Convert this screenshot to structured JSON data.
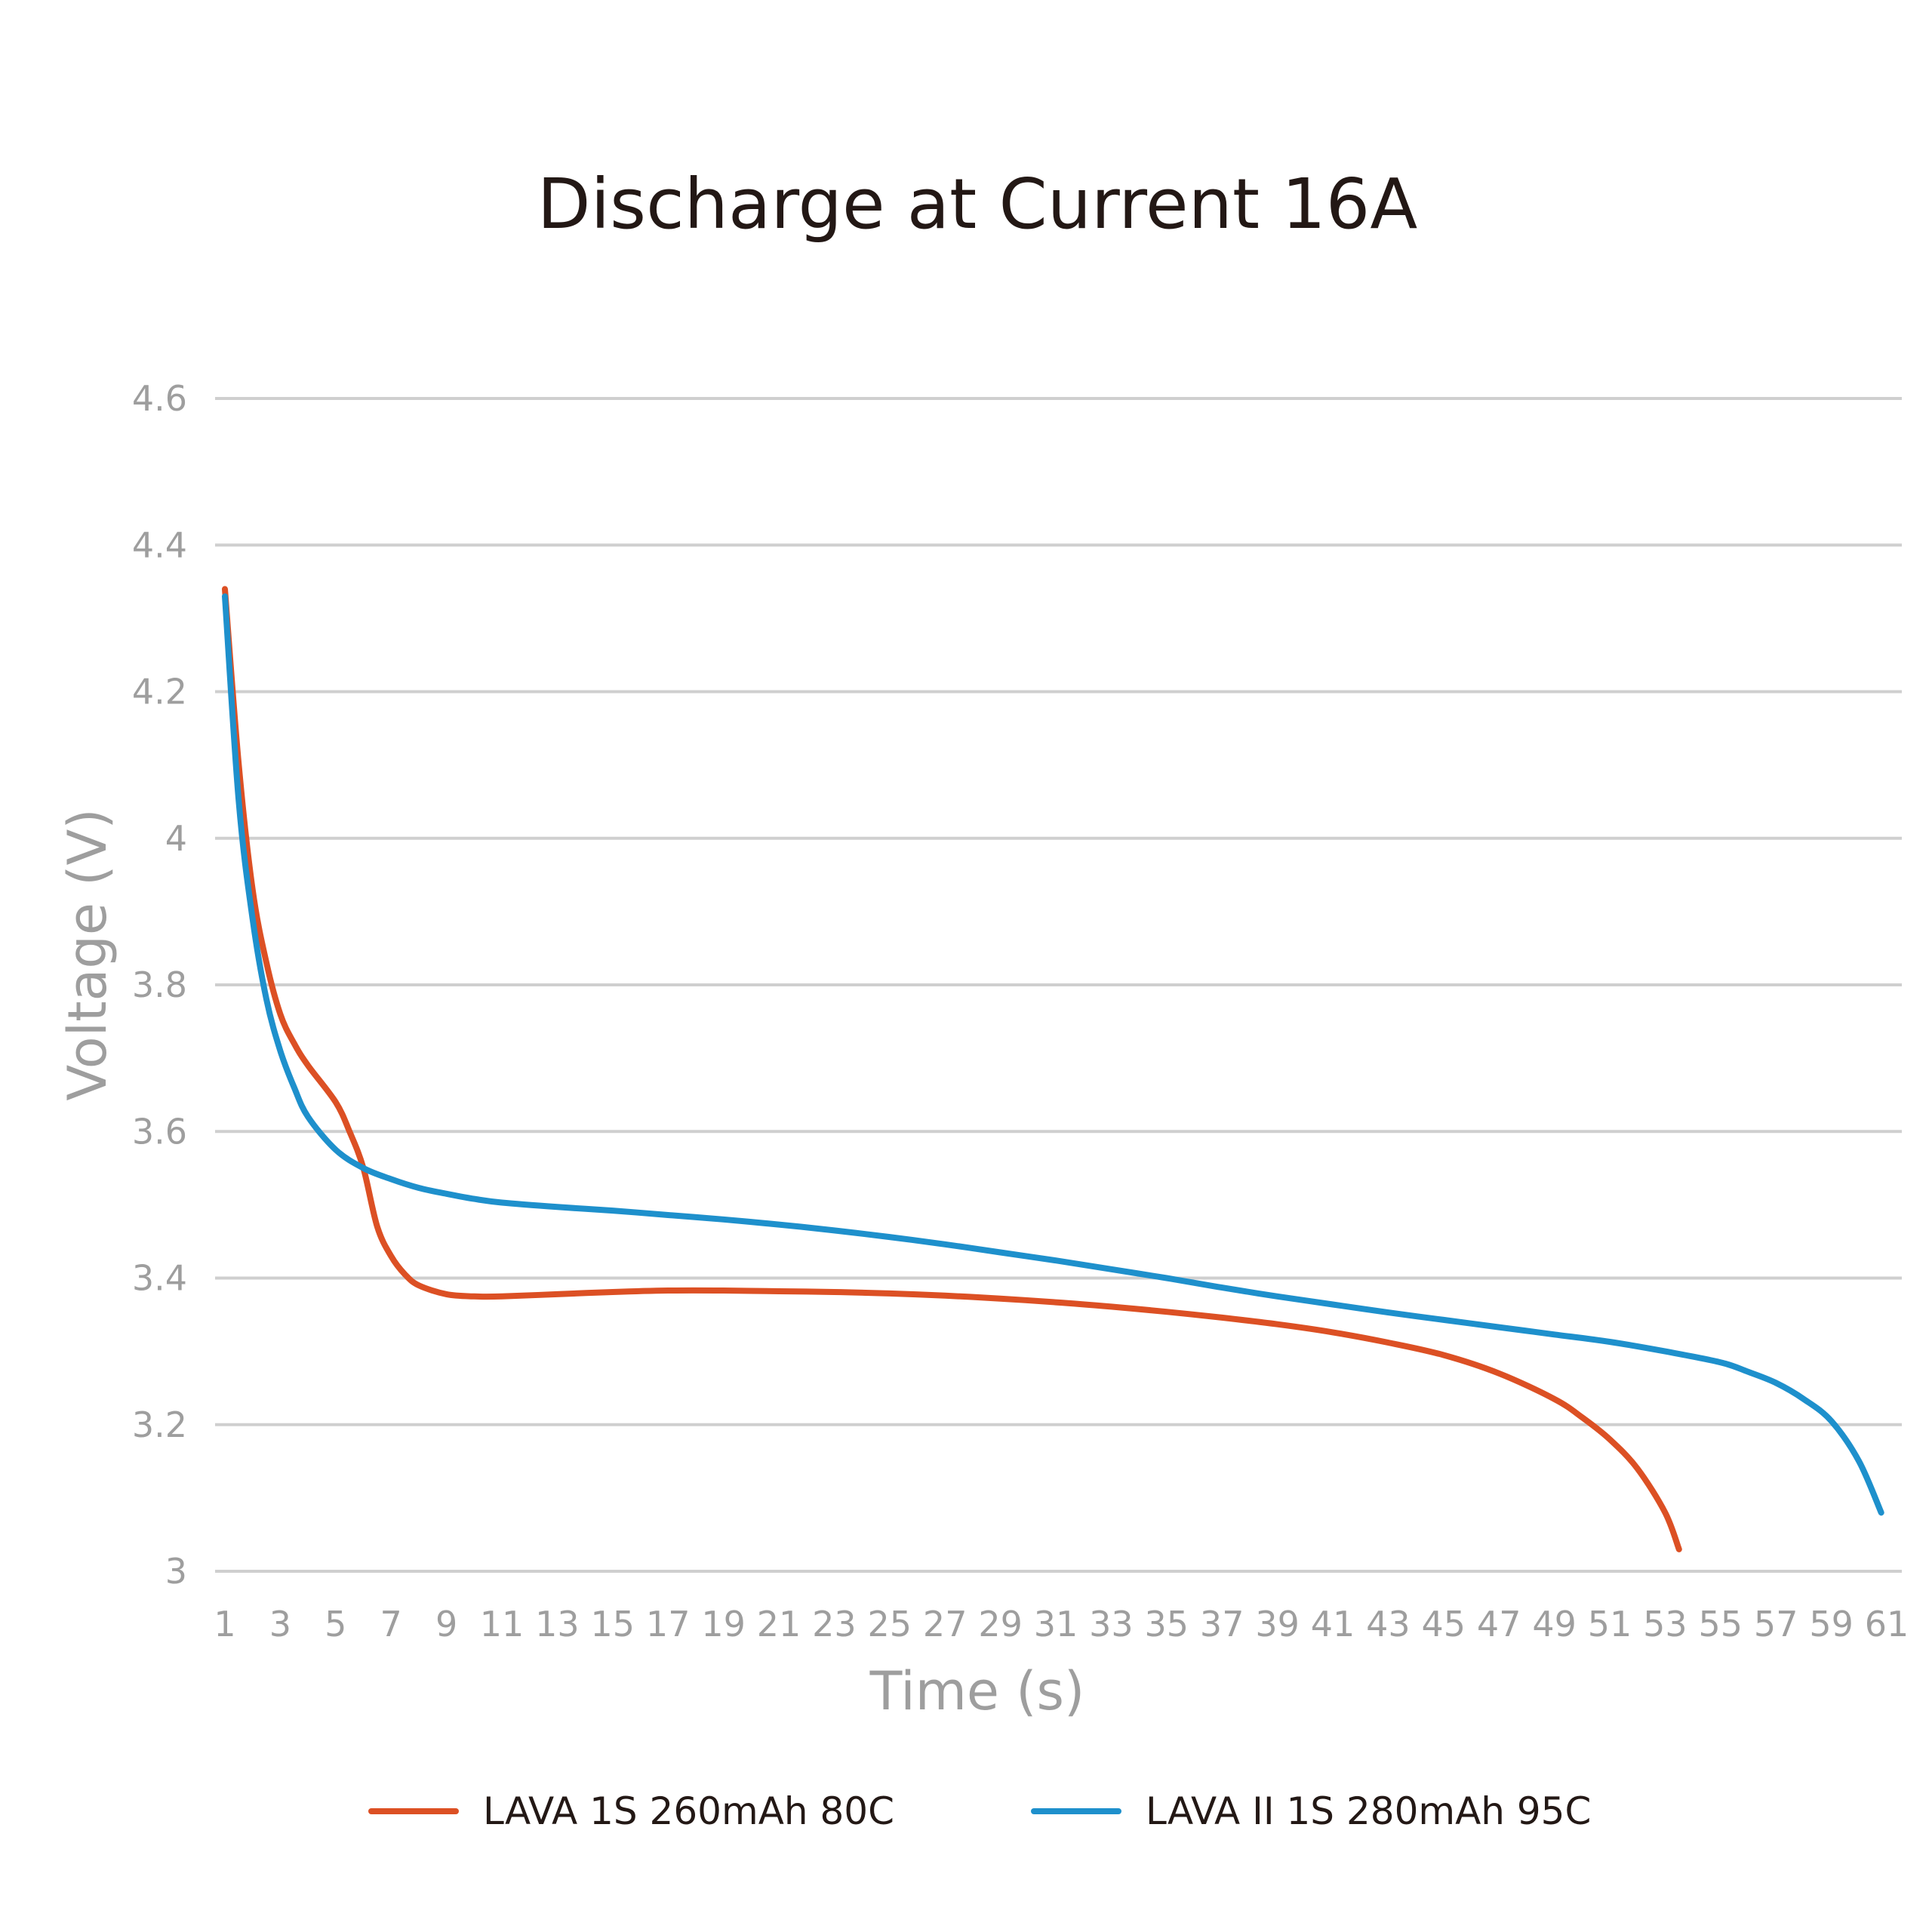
{
  "chart_data": {
    "type": "line",
    "title": "Discharge at Current 16A",
    "xlabel": "Time (s)",
    "ylabel": "Voltage (V)",
    "xlim": [
      1,
      61
    ],
    "ylim": [
      3,
      4.6
    ],
    "y_ticks": [
      "3",
      "3.2",
      "3.4",
      "3.6",
      "3.8",
      "4",
      "4.2",
      "4.4",
      "4.6"
    ],
    "x_ticks": [
      "1",
      "3",
      "5",
      "7",
      "9",
      "11",
      "13",
      "15",
      "17",
      "19",
      "21",
      "23",
      "25",
      "27",
      "29",
      "31",
      "33",
      "35",
      "37",
      "39",
      "41",
      "43",
      "45",
      "47",
      "49",
      "51",
      "53",
      "55",
      "57",
      "59",
      "61"
    ],
    "grid": true,
    "legend_position": "bottom",
    "series": [
      {
        "name": "LAVA 1S 260mAh 80C",
        "color": "#dc5024",
        "x": [
          1,
          1.5,
          2,
          2.5,
          3,
          3.5,
          4,
          5,
          5.5,
          6,
          6.5,
          7,
          7.5,
          8,
          9,
          10,
          11,
          13,
          15,
          17,
          19,
          21,
          23,
          25,
          27,
          29,
          31,
          33,
          35,
          37,
          39,
          41,
          43,
          45,
          47,
          49,
          50,
          51,
          52,
          53,
          53.5
        ],
        "y": [
          4.34,
          4.1,
          3.93,
          3.83,
          3.76,
          3.72,
          3.69,
          3.64,
          3.6,
          3.55,
          3.47,
          3.43,
          3.405,
          3.39,
          3.378,
          3.375,
          3.375,
          3.378,
          3.381,
          3.383,
          3.383,
          3.382,
          3.381,
          3.379,
          3.376,
          3.372,
          3.367,
          3.361,
          3.354,
          3.346,
          3.337,
          3.326,
          3.312,
          3.295,
          3.27,
          3.235,
          3.21,
          3.18,
          3.14,
          3.08,
          3.03
        ]
      },
      {
        "name": "LAVA II 1S 280mAh 95C",
        "color": "#1e90cc",
        "x": [
          1,
          1.5,
          2,
          2.5,
          3,
          3.5,
          4,
          5,
          6,
          7,
          8,
          9,
          10,
          11,
          13,
          15,
          17,
          19,
          21,
          23,
          25,
          27,
          29,
          31,
          33,
          35,
          37,
          39,
          41,
          43,
          45,
          47,
          49,
          51,
          53,
          55,
          56,
          57,
          58,
          59,
          60,
          60.8
        ],
        "y": [
          4.33,
          4.05,
          3.89,
          3.78,
          3.71,
          3.66,
          3.62,
          3.575,
          3.55,
          3.535,
          3.523,
          3.515,
          3.508,
          3.503,
          3.497,
          3.492,
          3.486,
          3.48,
          3.473,
          3.465,
          3.456,
          3.446,
          3.435,
          3.424,
          3.412,
          3.4,
          3.387,
          3.375,
          3.364,
          3.353,
          3.343,
          3.333,
          3.323,
          3.313,
          3.3,
          3.285,
          3.272,
          3.257,
          3.235,
          3.205,
          3.15,
          3.08
        ]
      }
    ]
  }
}
